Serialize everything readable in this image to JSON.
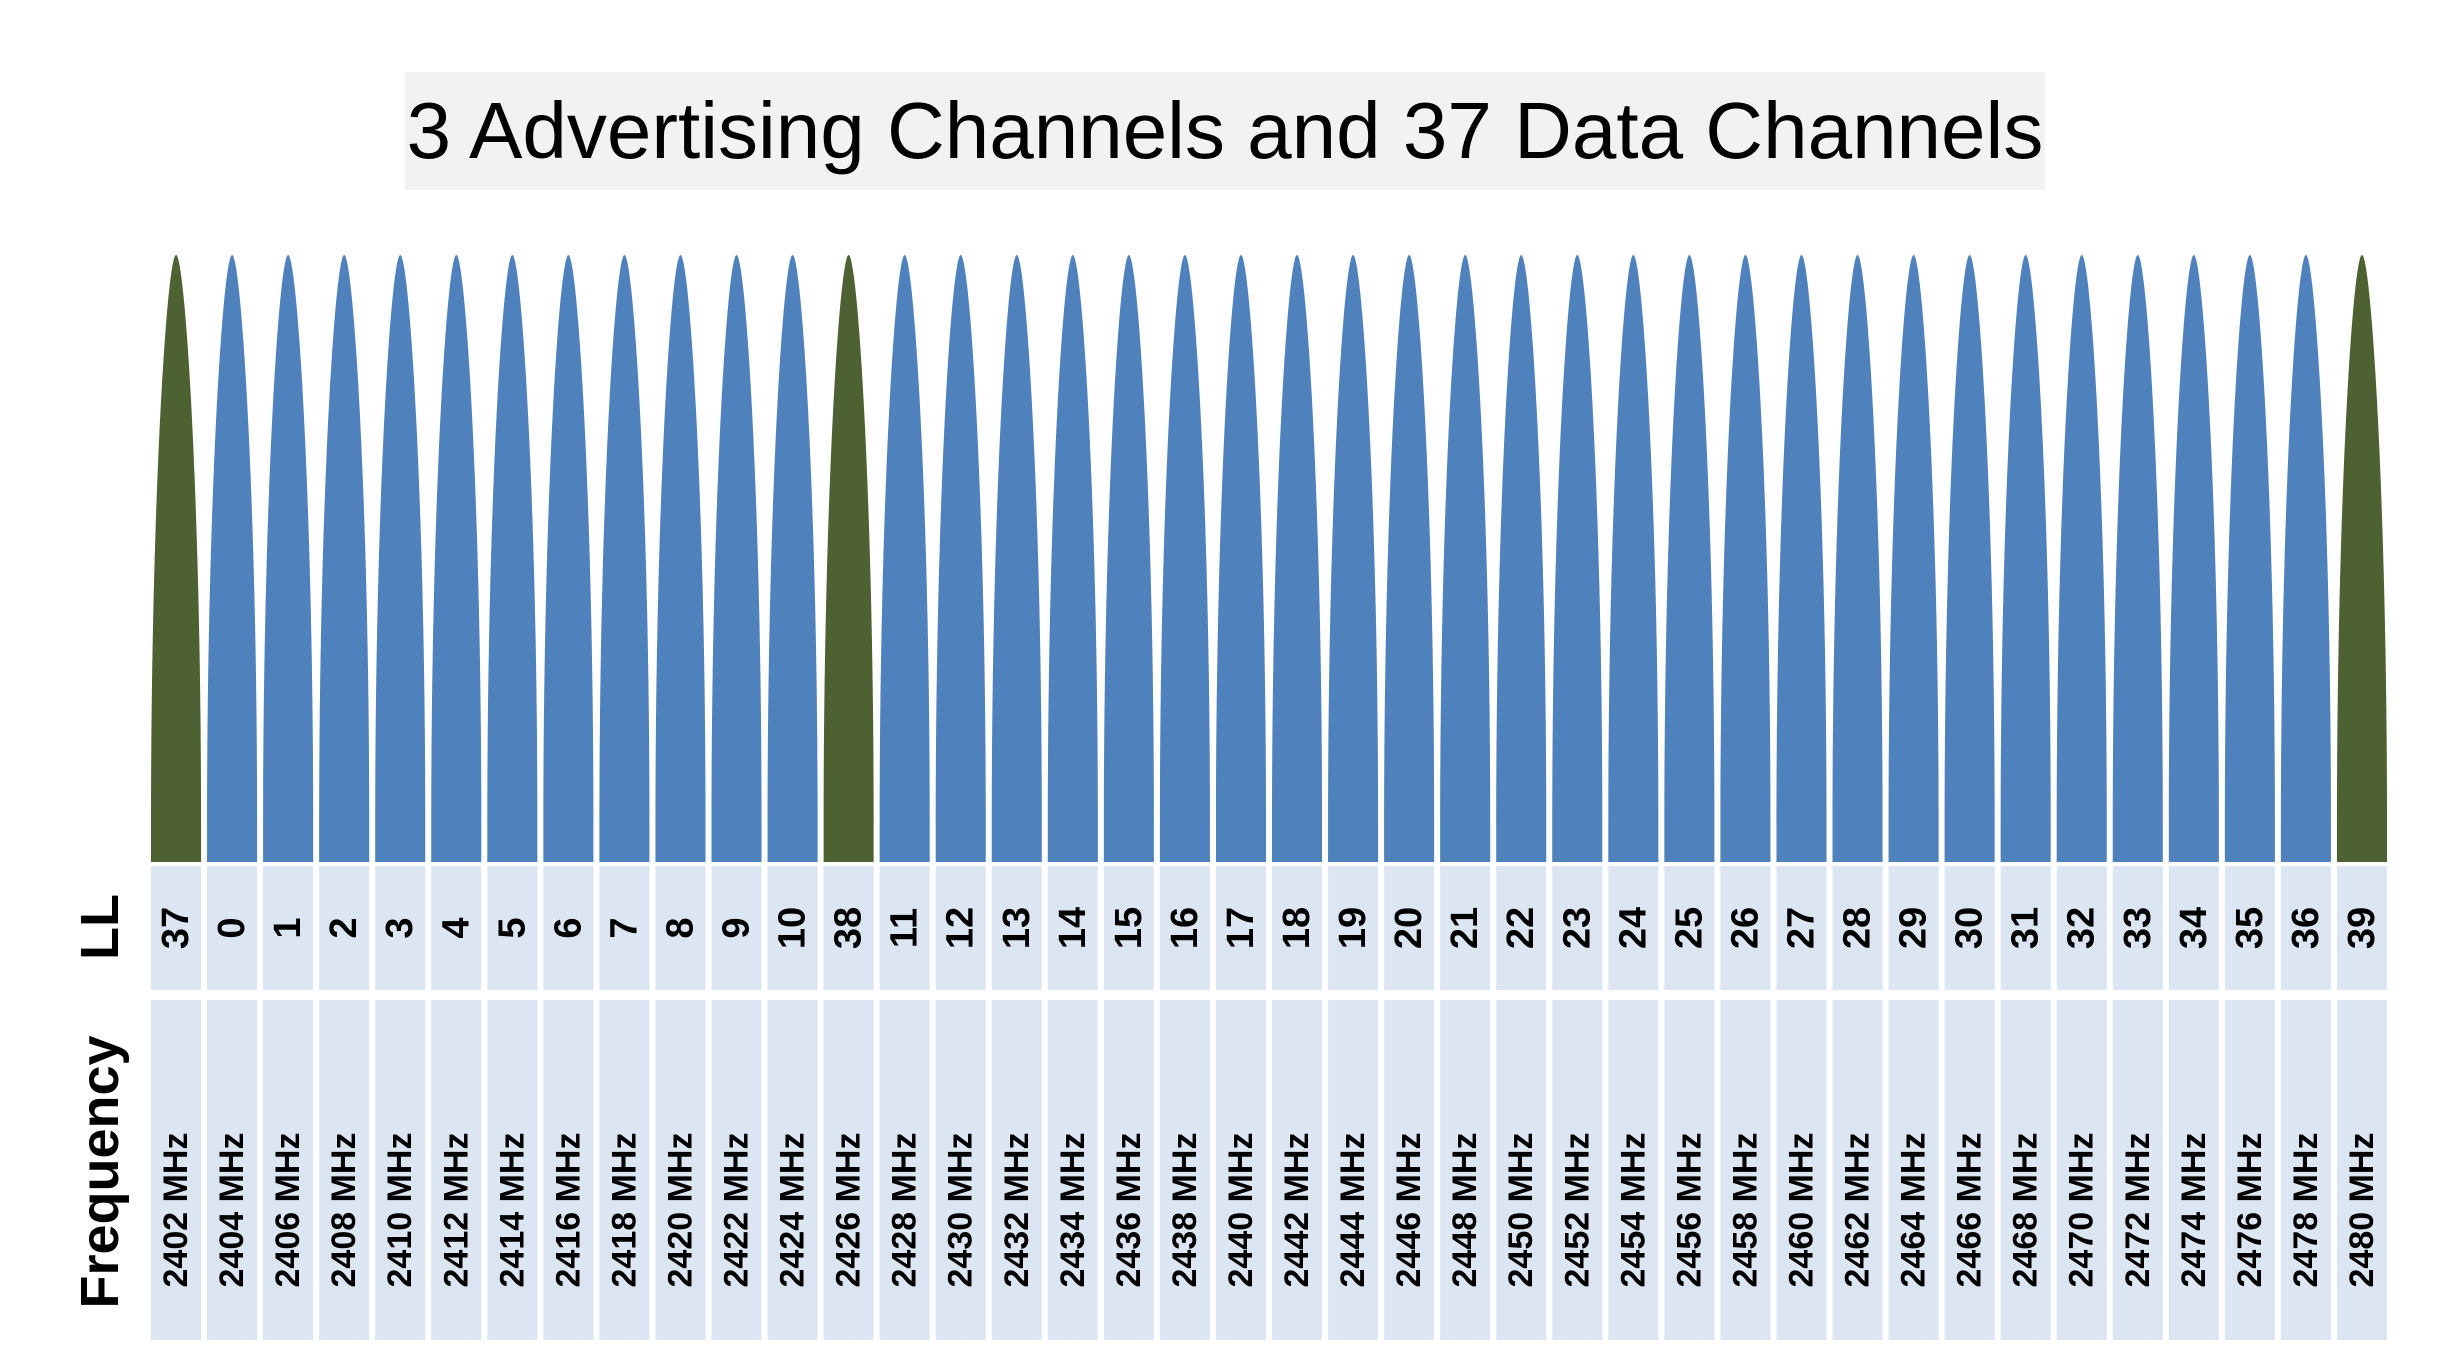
{
  "title": "3 Advertising Channels and 37 Data Channels",
  "row_labels": {
    "ll": "LL",
    "frequency": "Frequency"
  },
  "colors": {
    "advertising": "#4e6132",
    "data": "#4f81bd",
    "cell_bg": "#dce6f2"
  },
  "channels": [
    {
      "ll": "37",
      "freq": "2402 MHz",
      "type": "advertising"
    },
    {
      "ll": "0",
      "freq": "2404 MHz",
      "type": "data"
    },
    {
      "ll": "1",
      "freq": "2406 MHz",
      "type": "data"
    },
    {
      "ll": "2",
      "freq": "2408 MHz",
      "type": "data"
    },
    {
      "ll": "3",
      "freq": "2410 MHz",
      "type": "data"
    },
    {
      "ll": "4",
      "freq": "2412 MHz",
      "type": "data"
    },
    {
      "ll": "5",
      "freq": "2414 MHz",
      "type": "data"
    },
    {
      "ll": "6",
      "freq": "2416 MHz",
      "type": "data"
    },
    {
      "ll": "7",
      "freq": "2418 MHz",
      "type": "data"
    },
    {
      "ll": "8",
      "freq": "2420 MHz",
      "type": "data"
    },
    {
      "ll": "9",
      "freq": "2422 MHz",
      "type": "data"
    },
    {
      "ll": "10",
      "freq": "2424 MHz",
      "type": "data"
    },
    {
      "ll": "38",
      "freq": "2426 MHz",
      "type": "advertising"
    },
    {
      "ll": "11",
      "freq": "2428 MHz",
      "type": "data"
    },
    {
      "ll": "12",
      "freq": "2430 MHz",
      "type": "data"
    },
    {
      "ll": "13",
      "freq": "2432 MHz",
      "type": "data"
    },
    {
      "ll": "14",
      "freq": "2434 MHz",
      "type": "data"
    },
    {
      "ll": "15",
      "freq": "2436 MHz",
      "type": "data"
    },
    {
      "ll": "16",
      "freq": "2438 MHz",
      "type": "data"
    },
    {
      "ll": "17",
      "freq": "2440 MHz",
      "type": "data"
    },
    {
      "ll": "18",
      "freq": "2442 MHz",
      "type": "data"
    },
    {
      "ll": "19",
      "freq": "2444 MHz",
      "type": "data"
    },
    {
      "ll": "20",
      "freq": "2446 MHz",
      "type": "data"
    },
    {
      "ll": "21",
      "freq": "2448 MHz",
      "type": "data"
    },
    {
      "ll": "22",
      "freq": "2450 MHz",
      "type": "data"
    },
    {
      "ll": "23",
      "freq": "2452 MHz",
      "type": "data"
    },
    {
      "ll": "24",
      "freq": "2454 MHz",
      "type": "data"
    },
    {
      "ll": "25",
      "freq": "2456 MHz",
      "type": "data"
    },
    {
      "ll": "26",
      "freq": "2458 MHz",
      "type": "data"
    },
    {
      "ll": "27",
      "freq": "2460 MHz",
      "type": "data"
    },
    {
      "ll": "28",
      "freq": "2462 MHz",
      "type": "data"
    },
    {
      "ll": "29",
      "freq": "2464 MHz",
      "type": "data"
    },
    {
      "ll": "30",
      "freq": "2466 MHz",
      "type": "data"
    },
    {
      "ll": "31",
      "freq": "2468 MHz",
      "type": "data"
    },
    {
      "ll": "32",
      "freq": "2470 MHz",
      "type": "data"
    },
    {
      "ll": "33",
      "freq": "2472 MHz",
      "type": "data"
    },
    {
      "ll": "34",
      "freq": "2474 MHz",
      "type": "data"
    },
    {
      "ll": "35",
      "freq": "2476 MHz",
      "type": "data"
    },
    {
      "ll": "36",
      "freq": "2478 MHz",
      "type": "data"
    },
    {
      "ll": "39",
      "freq": "2480 MHz",
      "type": "advertising"
    }
  ]
}
